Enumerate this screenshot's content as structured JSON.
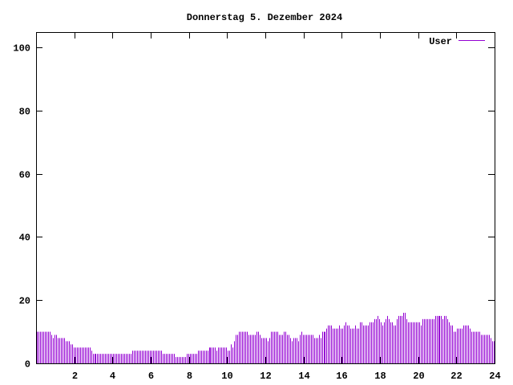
{
  "chart_data": {
    "type": "bar",
    "title": "Donnerstag 5. Dezember 2024",
    "xlabel": "",
    "ylabel": "",
    "xlim": [
      0,
      24
    ],
    "ylim": [
      0,
      105
    ],
    "x_ticks": [
      "2",
      "4",
      "6",
      "8",
      "10",
      "12",
      "14",
      "16",
      "18",
      "20",
      "22",
      "24"
    ],
    "y_ticks": [
      "0",
      "20",
      "40",
      "60",
      "80",
      "100"
    ],
    "grid": false,
    "legend_position": "top-right",
    "series": [
      {
        "name": "User",
        "color": "#9400d3",
        "values": [
          10,
          10,
          10,
          10,
          10,
          10,
          10,
          10,
          10,
          9,
          8,
          9,
          9,
          8,
          8,
          8,
          8,
          8,
          7,
          7,
          7,
          6,
          6,
          5,
          5,
          5,
          5,
          5,
          5,
          5,
          5,
          5,
          5,
          5,
          4,
          3,
          3,
          3,
          3,
          3,
          3,
          3,
          3,
          3,
          3,
          3,
          3,
          3,
          3,
          3,
          3,
          3,
          3,
          3,
          3,
          3,
          3,
          3,
          3,
          3,
          4,
          4,
          4,
          4,
          4,
          4,
          4,
          4,
          4,
          4,
          4,
          4,
          4,
          4,
          4,
          4,
          4,
          4,
          4,
          3,
          3,
          3,
          3,
          3,
          3,
          3,
          3,
          2,
          2,
          2,
          2,
          2,
          2,
          2,
          3,
          3,
          3,
          3,
          3,
          3,
          3,
          4,
          4,
          4,
          4,
          4,
          4,
          4,
          5,
          5,
          5,
          5,
          5,
          4,
          5,
          5,
          5,
          5,
          5,
          5,
          4,
          4,
          6,
          5,
          7,
          9,
          9,
          10,
          10,
          10,
          10,
          10,
          10,
          9,
          9,
          9,
          9,
          9,
          10,
          10,
          9,
          8,
          8,
          8,
          8,
          7,
          8,
          10,
          10,
          10,
          10,
          10,
          9,
          9,
          9,
          10,
          10,
          9,
          9,
          8,
          7,
          8,
          8,
          8,
          7,
          9,
          10,
          9,
          9,
          9,
          9,
          9,
          9,
          9,
          8,
          8,
          8,
          9,
          8,
          10,
          10,
          10,
          11,
          12,
          12,
          12,
          11,
          11,
          11,
          11,
          12,
          11,
          11,
          12,
          13,
          12,
          12,
          11,
          11,
          11,
          12,
          11,
          11,
          13,
          13,
          12,
          12,
          12,
          12,
          13,
          13,
          13,
          14,
          14,
          15,
          14,
          13,
          12,
          13,
          14,
          15,
          14,
          13,
          13,
          12,
          12,
          14,
          15,
          15,
          15,
          16,
          16,
          14,
          13,
          13,
          13,
          13,
          13,
          13,
          13,
          13,
          12,
          14,
          14,
          14,
          14,
          14,
          14,
          14,
          14,
          15,
          15,
          15,
          15,
          15,
          14,
          15,
          15,
          14,
          13,
          12,
          12,
          10,
          10,
          11,
          11,
          11,
          11,
          12,
          12,
          12,
          12,
          11,
          10,
          10,
          10,
          10,
          10,
          10,
          9,
          9,
          9,
          9,
          9,
          9,
          8,
          7,
          7
        ]
      }
    ]
  }
}
